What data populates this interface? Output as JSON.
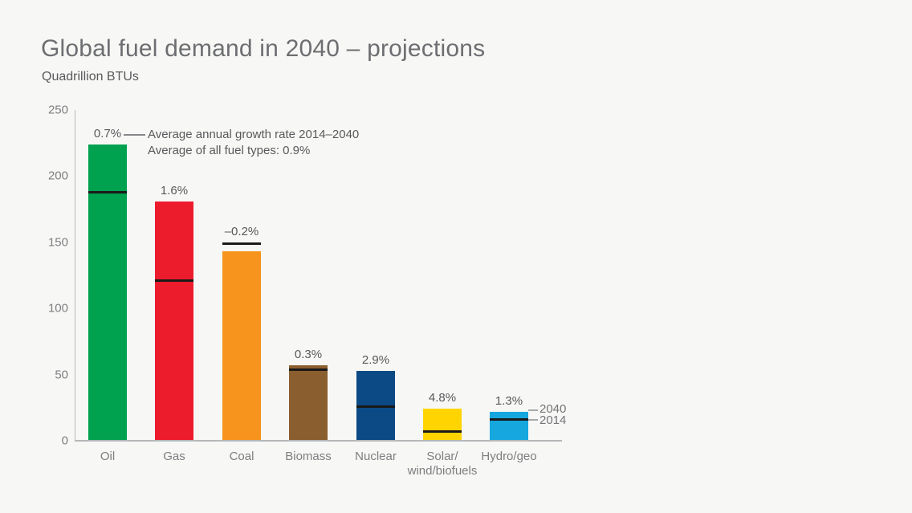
{
  "page": {
    "background": "#f7f7f5"
  },
  "header": {
    "title": "Global fuel demand in 2040 – projections",
    "subtitle": "Quadrillion BTUs"
  },
  "annotation": {
    "line1": "Average annual growth rate 2014–2040",
    "line2": "Average of all fuel types: 0.9%"
  },
  "legend": {
    "top_label": "2040",
    "bottom_label": "2014"
  },
  "chart_data": {
    "type": "bar",
    "title": "Global fuel demand in 2040 – projections",
    "ylabel": "Quadrillion BTUs",
    "ylim": [
      0,
      250
    ],
    "yticks": [
      0,
      50,
      100,
      150,
      200,
      250
    ],
    "grid": false,
    "legend_position": "right-of-last-bar",
    "categories": [
      "Oil",
      "Gas",
      "Coal",
      "Biomass",
      "Nuclear",
      "Solar/\nwind/biofuels",
      "Hydro/geo"
    ],
    "series": [
      {
        "name": "2040",
        "values": [
          224,
          181,
          143,
          57,
          53,
          24,
          22
        ]
      },
      {
        "name": "2014",
        "values": [
          188,
          121,
          149,
          54,
          26,
          7,
          16
        ]
      }
    ],
    "growth_labels": [
      "0.7%",
      "1.6%",
      "–0.2%",
      "0.3%",
      "2.9%",
      "4.8%",
      "1.3%"
    ],
    "bar_colors": [
      "#00A14F",
      "#ED1C2D",
      "#F7941E",
      "#8B5E2F",
      "#0B4A85",
      "#FFD400",
      "#16A7DF"
    ],
    "marker_color": "#1A1A1A",
    "axis_color": "#B5B7B9"
  }
}
